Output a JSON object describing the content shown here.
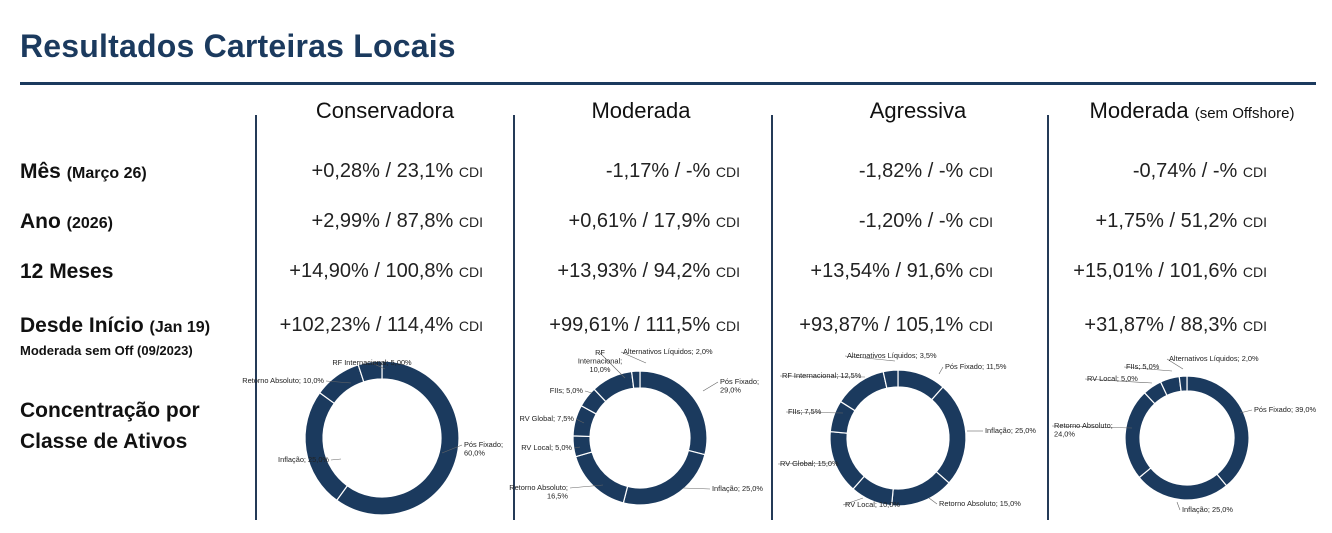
{
  "title": "Resultados Carteiras Locais",
  "columns": [
    {
      "name": "Conservadora",
      "sub": ""
    },
    {
      "name": "Moderada",
      "sub": ""
    },
    {
      "name": "Agressiva",
      "sub": ""
    },
    {
      "name": "Moderada",
      "sub": "(sem Offshore)"
    }
  ],
  "rows": [
    {
      "label": "Mês",
      "paren": "(Março 26)"
    },
    {
      "label": "Ano",
      "paren": "(2026)"
    },
    {
      "label": "12 Meses",
      "paren": ""
    },
    {
      "label": "Desde Início",
      "paren": "(Jan 19)",
      "sub": "Moderada sem Off (09/2023)"
    }
  ],
  "concentration_label": [
    "Concentração por",
    "Classe de Ativos"
  ],
  "cdi_unit": "CDI",
  "values": [
    [
      "+0,28% / 23,1%",
      "-1,17% / -%",
      "-1,82% / -%",
      "-0,74% / -%"
    ],
    [
      "+2,99% / 87,8%",
      "+0,61% / 17,9%",
      "-1,20% / -%",
      "+1,75% / 51,2%"
    ],
    [
      "+14,90% / 100,8%",
      "+13,93% / 94,2%",
      "+13,54% / 91,6%",
      "+15,01% / 101,6%"
    ],
    [
      "+102,23% / 114,4%",
      "+99,61% / 111,5%",
      "+93,87% / 105,1%",
      "+31,87% / 88,3%"
    ]
  ],
  "colors": {
    "title": "#1b3a5e",
    "donut": "#1b3a5e",
    "separator": "#ffffff"
  },
  "chart_data": [
    {
      "type": "pie",
      "title": "Conservadora",
      "slices": [
        {
          "label": "Pós Fixado;",
          "label2": "60,0%",
          "value": 60.0
        },
        {
          "label": "Inflação; 25,0%",
          "value": 25.0
        },
        {
          "label": "Retorno Absoluto; 10,0%",
          "value": 10.0
        },
        {
          "label": "RF Internacional; 5,00%",
          "value": 5.0
        }
      ]
    },
    {
      "type": "pie",
      "title": "Moderada",
      "slices": [
        {
          "label": "Pós Fixado;",
          "label2": "29,0%",
          "value": 29.0
        },
        {
          "label": "Inflação; 25,0%",
          "value": 25.0
        },
        {
          "label": "Retorno Absoluto;",
          "label2": "16,5%",
          "value": 16.5
        },
        {
          "label": "RV Local; 5,0%",
          "value": 5.0
        },
        {
          "label": "RV Global; 7,5%",
          "value": 7.5
        },
        {
          "label": "FIIs; 5,0%",
          "value": 5.0
        },
        {
          "label": "RF",
          "label2": "Internacional;",
          "label3": "10,0%",
          "value": 10.0
        },
        {
          "label": "Alternativos Líquidos; 2,0%",
          "value": 2.0
        }
      ]
    },
    {
      "type": "pie",
      "title": "Agressiva",
      "slices": [
        {
          "label": "Pós Fixado; 11,5%",
          "value": 11.5
        },
        {
          "label": "Inflação; 25,0%",
          "value": 25.0
        },
        {
          "label": "Retorno Absoluto; 15,0%",
          "value": 15.0
        },
        {
          "label": "RV Local; 10,0%",
          "value": 10.0
        },
        {
          "label": "RV Global; 15,0%",
          "value": 15.0
        },
        {
          "label": "FIIs; 7,5%",
          "value": 7.5
        },
        {
          "label": "RF Internacional; 12,5%",
          "value": 12.5
        },
        {
          "label": "Alternativos Líquidos; 3,5%",
          "value": 3.5
        }
      ]
    },
    {
      "type": "pie",
      "title": "Moderada (sem Offshore)",
      "slices": [
        {
          "label": "Pós Fixado; 39,0%",
          "value": 39.0
        },
        {
          "label": "Inflação; 25,0%",
          "value": 25.0
        },
        {
          "label": "Retorno Absoluto;",
          "label2": "24,0%",
          "value": 24.0
        },
        {
          "label": "RV Local; 5,0%",
          "value": 5.0
        },
        {
          "label": "FIIs; 5,0%",
          "value": 5.0
        },
        {
          "label": "Alternativos Líquidos; 2,0%",
          "value": 2.0
        }
      ]
    }
  ]
}
